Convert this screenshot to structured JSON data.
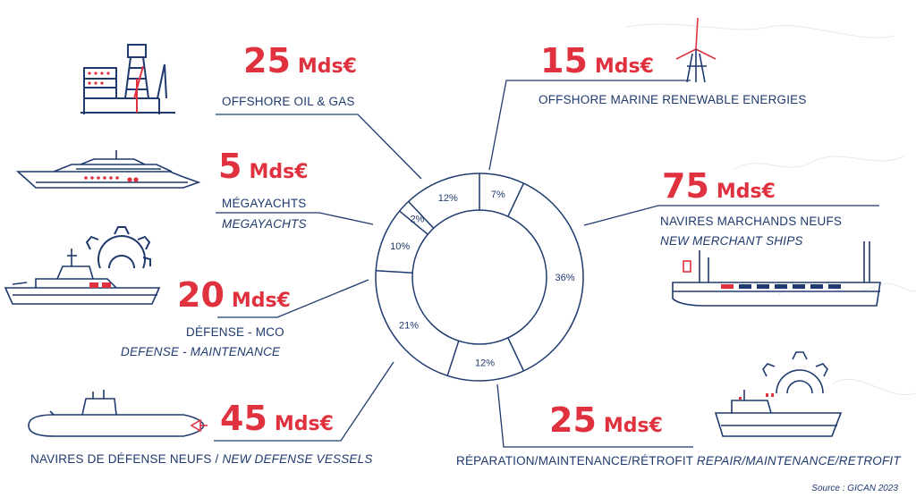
{
  "chart_data": {
    "type": "pie",
    "title": "",
    "slices": [
      {
        "name": "Offshore marine renewable energies",
        "value": 7,
        "label": "7%"
      },
      {
        "name": "Navires marchands neufs",
        "value": 36,
        "label": "36%"
      },
      {
        "name": "Réparation/maintenance/rétrofit",
        "value": 12,
        "label": "12%"
      },
      {
        "name": "Navires de défense neufs",
        "value": 21,
        "label": "21%"
      },
      {
        "name": "Défense - MCO",
        "value": 10,
        "label": "10%"
      },
      {
        "name": "Mégayachts",
        "value": 2,
        "label": "2%"
      },
      {
        "name": "Offshore oil & gas",
        "value": 12,
        "label": "12%"
      }
    ]
  },
  "segments": {
    "oilgas": {
      "amount": "25",
      "unit": "Mds€",
      "label": "OFFSHORE OIL & GAS"
    },
    "yachts": {
      "amount": "5",
      "unit": "Mds€",
      "label": "MÉGAYACHTS",
      "label_en": "MEGAYACHTS"
    },
    "defense_mco": {
      "amount": "20",
      "unit": "Mds€",
      "label": "DÉFENSE - MCO",
      "label_en": "DEFENSE - MAINTENANCE"
    },
    "defense_new": {
      "amount": "45",
      "unit": "Mds€",
      "label": "NAVIRES DE DÉFENSE NEUFS / ",
      "label_en": "NEW DEFENSE VESSELS"
    },
    "renewables": {
      "amount": "15",
      "unit": "Mds€",
      "label": "OFFSHORE MARINE RENEWABLE ENERGIES"
    },
    "merchant": {
      "amount": "75",
      "unit": "Mds€",
      "label": "NAVIRES MARCHANDS NEUFS",
      "label_en": "NEW MERCHANT SHIPS"
    },
    "repair": {
      "amount": "25",
      "unit": "Mds€",
      "label": "RÉPARATION/MAINTENANCE/RÉTROFIT ",
      "label_en": "REPAIR/MAINTENANCE/RETROFIT"
    }
  },
  "source": "Source : GICAN 2023",
  "colors": {
    "navy": "#1f3a6e",
    "red": "#e0313f"
  },
  "icons": [
    "oil-rig-icon",
    "megayacht-icon",
    "frigate-icon",
    "gear-icon",
    "submarine-icon",
    "wind-turbine-icon",
    "cargo-ship-icon",
    "maintenance-ship-icon"
  ]
}
